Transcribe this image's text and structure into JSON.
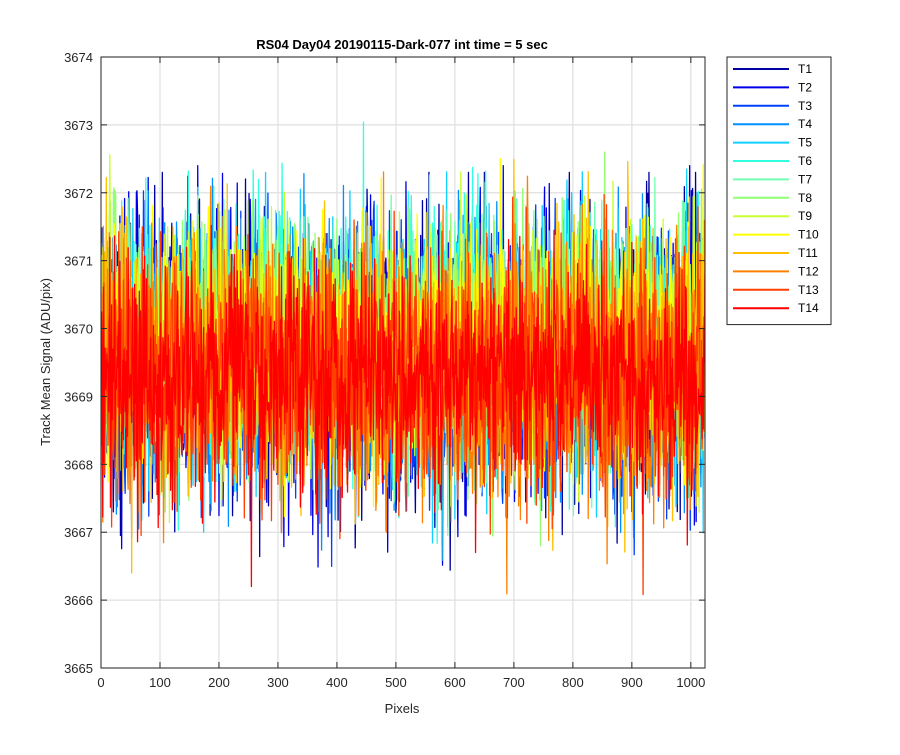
{
  "chart_data": {
    "type": "line",
    "title": "RS04 Day04 20190115-Dark-077 int time = 5 sec",
    "xlabel": "Pixels",
    "ylabel": "Track Mean Signal (ADU/pix)",
    "xlim": [
      0,
      1024
    ],
    "ylim": [
      3665,
      3674
    ],
    "xticks": [
      0,
      100,
      200,
      300,
      400,
      500,
      600,
      700,
      800,
      900,
      1000
    ],
    "yticks": [
      3665,
      3666,
      3667,
      3668,
      3669,
      3670,
      3671,
      3672,
      3673,
      3674
    ],
    "grid": true,
    "legend_position": "outside-top-right",
    "x": {
      "start": 1,
      "end": 1024,
      "step": 1
    },
    "series": [
      {
        "name": "T1",
        "color": "#0000a0",
        "mean": 3669.6,
        "sd": 1.05,
        "min": 3666.2,
        "max": 3672.3,
        "seed": 11
      },
      {
        "name": "T2",
        "color": "#0000e6",
        "mean": 3669.6,
        "sd": 1.05,
        "min": 3666.3,
        "max": 3672.4,
        "seed": 23
      },
      {
        "name": "T3",
        "color": "#0040ff",
        "mean": 3669.6,
        "sd": 1.0,
        "min": 3666.4,
        "max": 3672.5,
        "seed": 37
      },
      {
        "name": "T4",
        "color": "#0090ff",
        "mean": 3669.6,
        "sd": 1.0,
        "min": 3666.5,
        "max": 3673.05,
        "seed": 41
      },
      {
        "name": "T5",
        "color": "#10d0ff",
        "mean": 3669.7,
        "sd": 0.95,
        "min": 3666.5,
        "max": 3672.9,
        "seed": 53
      },
      {
        "name": "T6",
        "color": "#30ffe0",
        "mean": 3669.8,
        "sd": 0.95,
        "min": 3666.5,
        "max": 3673.35,
        "seed": 67
      },
      {
        "name": "T7",
        "color": "#70ffb0",
        "mean": 3669.8,
        "sd": 0.9,
        "min": 3666.7,
        "max": 3672.6,
        "seed": 71
      },
      {
        "name": "T8",
        "color": "#90ff70",
        "mean": 3669.8,
        "sd": 0.9,
        "min": 3666.8,
        "max": 3672.6,
        "seed": 83
      },
      {
        "name": "T9",
        "color": "#c8ff30",
        "mean": 3669.8,
        "sd": 0.9,
        "min": 3666.9,
        "max": 3672.6,
        "seed": 97
      },
      {
        "name": "T10",
        "color": "#ffff00",
        "mean": 3669.7,
        "sd": 0.9,
        "min": 3666.9,
        "max": 3672.5,
        "seed": 101
      },
      {
        "name": "T11",
        "color": "#ffbf00",
        "mean": 3669.5,
        "sd": 0.95,
        "min": 3666.4,
        "max": 3672.7,
        "seed": 113
      },
      {
        "name": "T12",
        "color": "#ff8000",
        "mean": 3669.4,
        "sd": 0.95,
        "min": 3665.8,
        "max": 3672.5,
        "seed": 127
      },
      {
        "name": "T13",
        "color": "#ff4000",
        "mean": 3669.3,
        "sd": 0.9,
        "min": 3665.9,
        "max": 3672.4,
        "seed": 131
      },
      {
        "name": "T14",
        "color": "#ff0000",
        "mean": 3669.3,
        "sd": 0.8,
        "min": 3666.2,
        "max": 3671.8,
        "seed": 139
      }
    ]
  }
}
